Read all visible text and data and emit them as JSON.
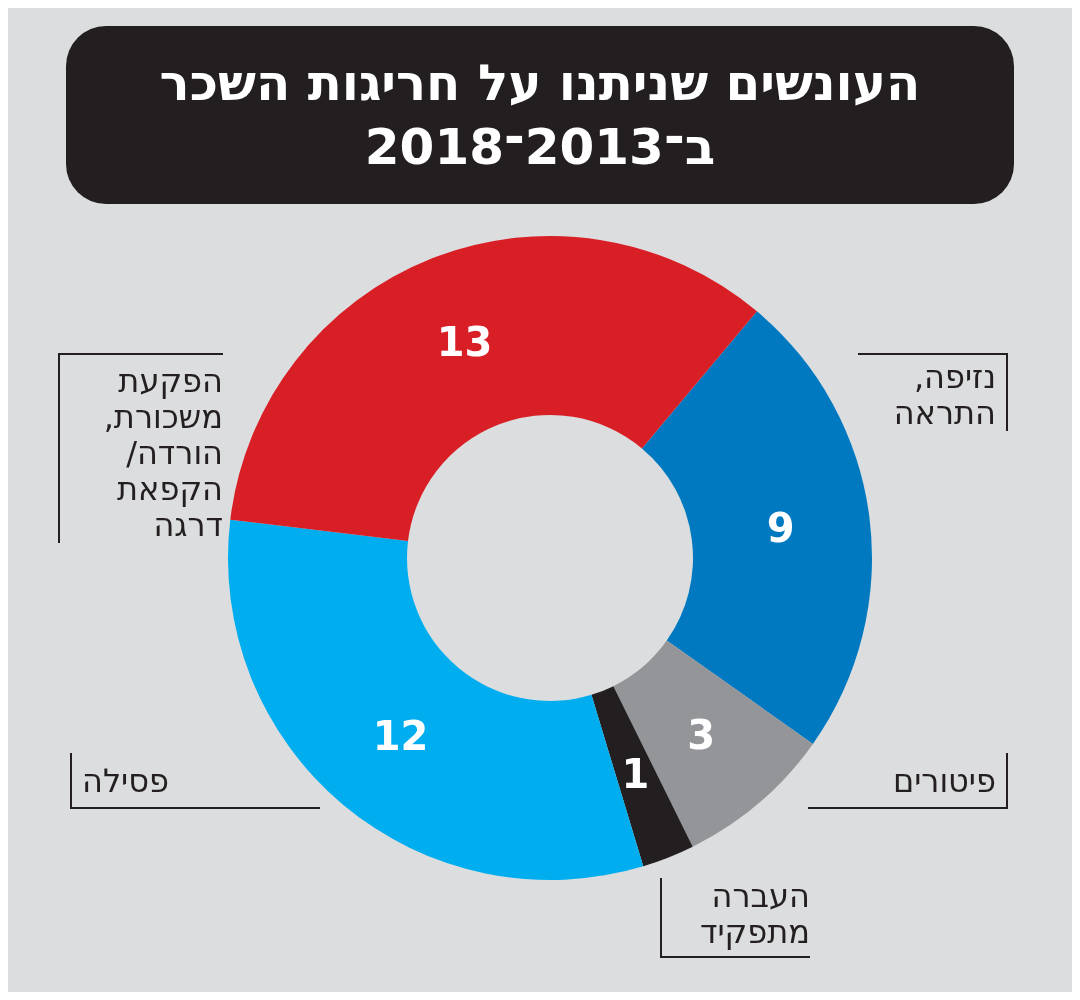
{
  "chart_data": {
    "type": "donut",
    "title": "העונשים שניתנו על חריגות השכר ב־2013־2018",
    "categories": [
      "נזיפה, התראה",
      "פיטורים",
      "העברה מתפקיד",
      "פסילה",
      "הפקעת משכורת, הורדה/ הקפאת דרגה"
    ],
    "values": [
      9,
      3,
      1,
      12,
      13
    ],
    "colors": [
      "#0079c1",
      "#939598",
      "#231f20",
      "#00aeef",
      "#d91f26"
    ],
    "data_labels": true
  }
}
